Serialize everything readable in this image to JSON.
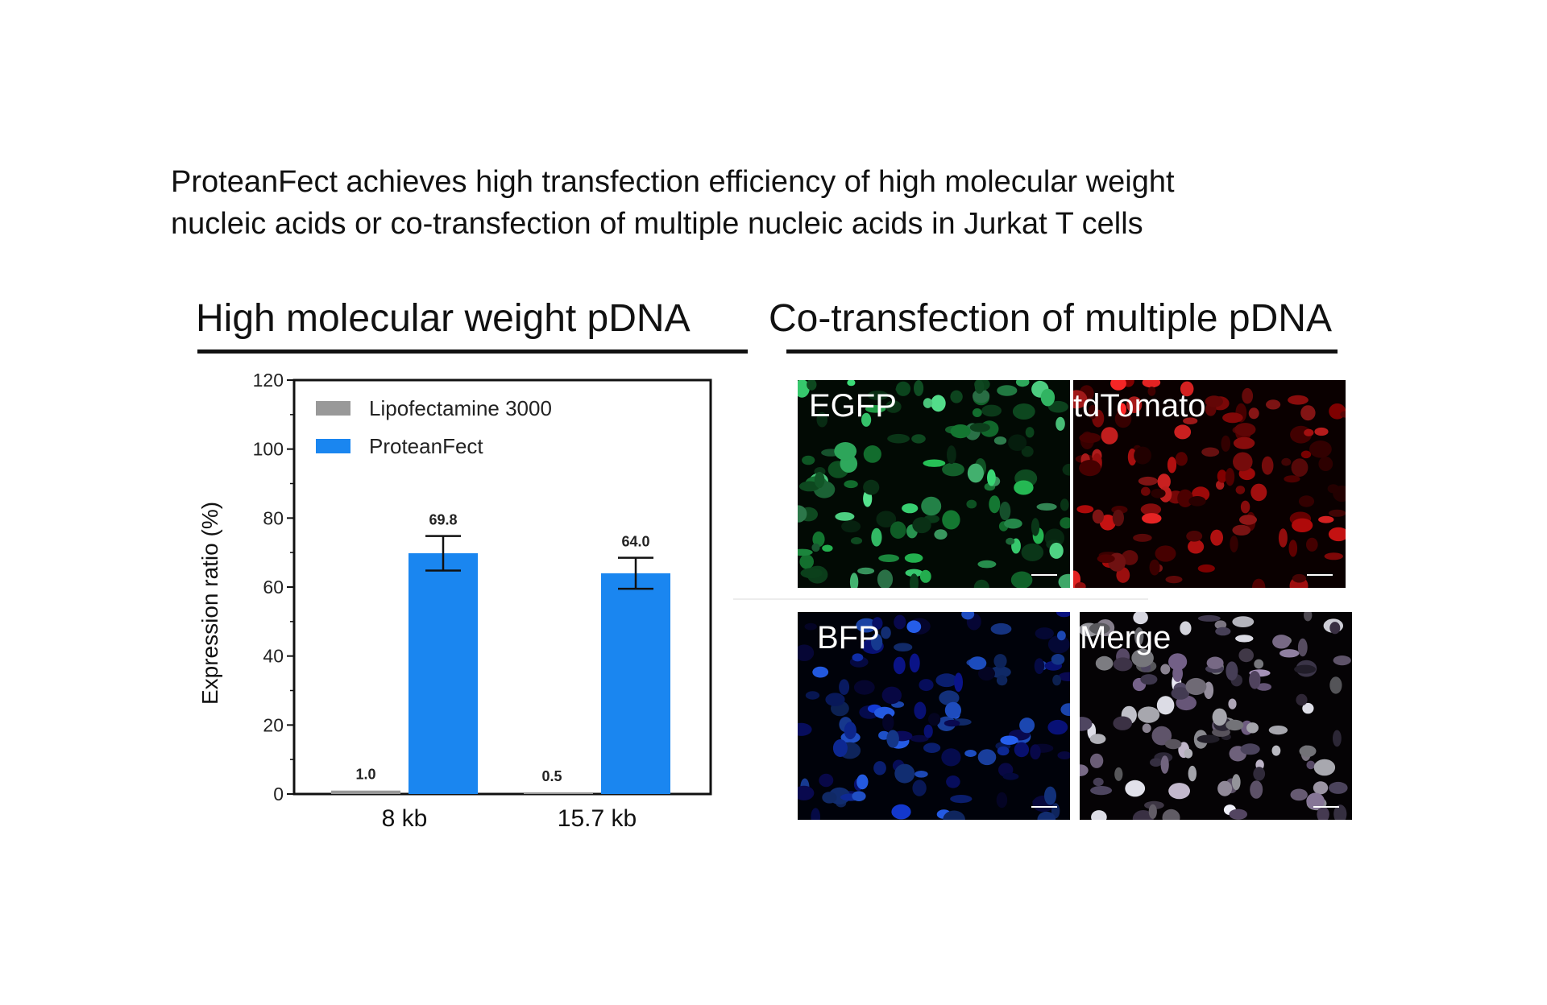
{
  "headline": {
    "line1": "ProteanFect achieves high transfection efficiency of high molecular weight",
    "line2": "nucleic acids or co-transfection of multiple nucleic acids in Jurkat T cells"
  },
  "left_section": {
    "title": "High molecular weight pDNA"
  },
  "right_section": {
    "title": "Co-transfection of multiple pDNA"
  },
  "chart_data": {
    "type": "bar",
    "categories": [
      "8 kb",
      "15.7 kb"
    ],
    "series": [
      {
        "name": "Lipofectamine 3000",
        "values": [
          1.0,
          0.5
        ],
        "error": [
          0,
          0
        ],
        "labels": [
          "1.0",
          "0.5"
        ]
      },
      {
        "name": "ProteanFect",
        "values": [
          69.8,
          64.0
        ],
        "error": [
          5.0,
          4.5
        ],
        "labels": [
          "69.8",
          "64.0"
        ]
      }
    ],
    "title": "",
    "xlabel": "",
    "ylabel": "Expression ratio (%)",
    "ylim": [
      0,
      120
    ],
    "yticks": [
      "0",
      "20",
      "40",
      "60",
      "80",
      "100",
      "120"
    ],
    "legend_position": "top-left",
    "colors": {
      "Lipofectamine 3000": "#999999",
      "ProteanFect": "#1a86f0"
    },
    "grid": false
  },
  "micrographs": [
    {
      "label": "EGFP",
      "channel": "green"
    },
    {
      "label": "tdTomato",
      "channel": "red"
    },
    {
      "label": "BFP",
      "channel": "blue"
    },
    {
      "label": "Merge",
      "channel": "merge"
    }
  ]
}
